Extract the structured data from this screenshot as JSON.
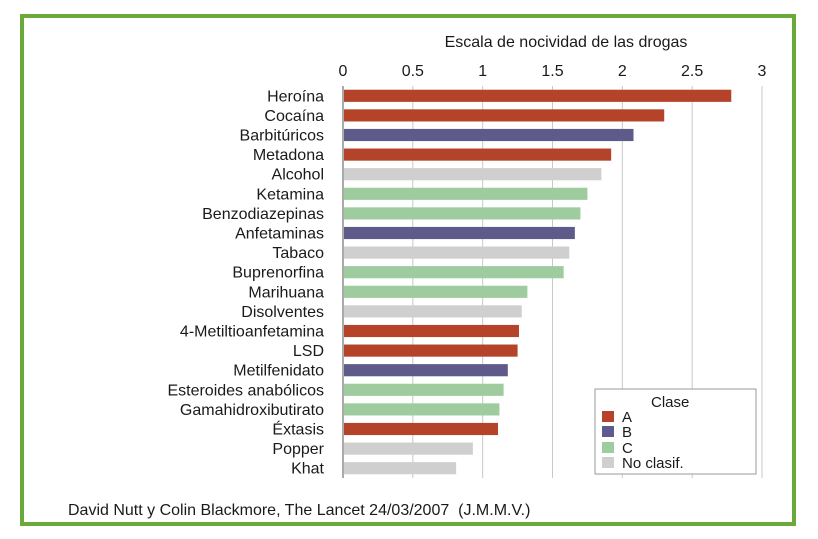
{
  "chart_data": {
    "type": "bar",
    "orientation": "horizontal",
    "title": "Escala de nocividad de las drogas",
    "xlim": [
      0,
      3
    ],
    "x_ticks": [
      "0",
      "0.5",
      "1",
      "1.5",
      "2",
      "2.5",
      "3"
    ],
    "grid": "vertical",
    "categories": [
      "Heroína",
      "Cocaína",
      "Barbitúricos",
      "Metadona",
      "Alcohol",
      "Ketamina",
      "Benzodiazepinas",
      "Anfetaminas",
      "Tabaco",
      "Buprenorfina",
      "Marihuana",
      "Disolventes",
      "4-Metiltioanfetamina",
      "LSD",
      "Metilfenidato",
      "Esteroides anabólicos",
      "Gamahidroxibutirato",
      "Éxtasis",
      "Popper",
      "Khat"
    ],
    "values": [
      2.78,
      2.3,
      2.08,
      1.92,
      1.85,
      1.75,
      1.7,
      1.66,
      1.62,
      1.58,
      1.32,
      1.28,
      1.26,
      1.25,
      1.18,
      1.15,
      1.12,
      1.11,
      0.93,
      0.81
    ],
    "classes": [
      "A",
      "A",
      "B",
      "A",
      "No clasif.",
      "C",
      "C",
      "B",
      "No clasif.",
      "C",
      "C",
      "No clasif.",
      "A",
      "A",
      "B",
      "C",
      "C",
      "A",
      "No clasif.",
      "No clasif."
    ],
    "legend": {
      "title": "Clase",
      "position": "bottom-right",
      "entries": [
        {
          "label": "A",
          "color": "#b5432a"
        },
        {
          "label": "B",
          "color": "#5e5a8a"
        },
        {
          "label": "C",
          "color": "#9fcc9f"
        },
        {
          "label": "No clasif.",
          "color": "#cfcfcf"
        }
      ]
    }
  },
  "source": "David Nutt y Colin Blackmore, The Lancet 24/03/2007  (J.M.M.V.)",
  "colors": {
    "frame": "#6aaa3a",
    "grid": "#c8c8c8",
    "axis": "#555555"
  }
}
